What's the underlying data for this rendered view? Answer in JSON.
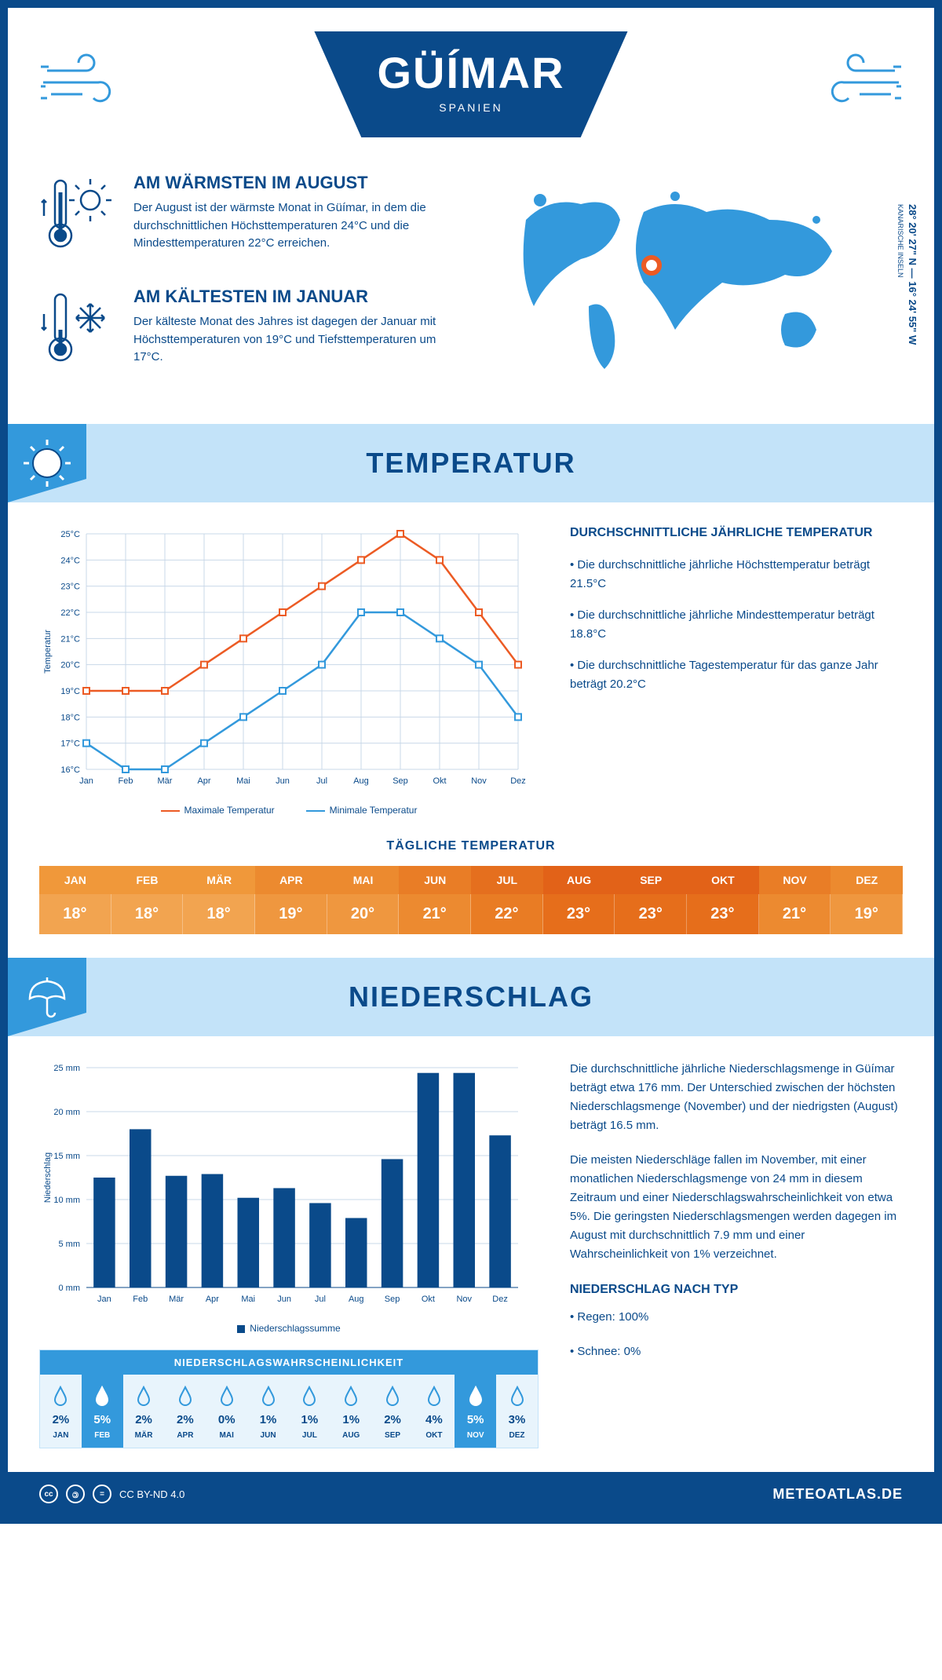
{
  "header": {
    "city": "GÜÍMAR",
    "country": "SPANIEN",
    "coords": "28° 20' 27\" N — 16° 24' 55\" W",
    "coords_sub": "KANARISCHE INSELN"
  },
  "facts": {
    "warm": {
      "title": "AM WÄRMSTEN IM AUGUST",
      "text": "Der August ist der wärmste Monat in Güímar, in dem die durchschnittlichen Höchsttemperaturen 24°C und die Mindesttemperaturen 22°C erreichen."
    },
    "cold": {
      "title": "AM KÄLTESTEN IM JANUAR",
      "text": "Der kälteste Monat des Jahres ist dagegen der Januar mit Höchsttemperaturen von 19°C und Tiefsttemperaturen um 17°C."
    }
  },
  "sections": {
    "temp_title": "TEMPERATUR",
    "precip_title": "NIEDERSCHLAG"
  },
  "temp_chart": {
    "type": "line",
    "months": [
      "Jan",
      "Feb",
      "Mär",
      "Apr",
      "Mai",
      "Jun",
      "Jul",
      "Aug",
      "Sep",
      "Okt",
      "Nov",
      "Dez"
    ],
    "max_series": [
      19,
      19,
      19,
      20,
      21,
      22,
      23,
      24,
      25,
      24,
      22,
      20
    ],
    "min_series": [
      17,
      16,
      16,
      17,
      18,
      19,
      20,
      22,
      22,
      21,
      20,
      18
    ],
    "ylim": [
      16,
      25
    ],
    "ytick_step": 1,
    "ylabel": "Temperatur",
    "max_color": "#ec5b24",
    "min_color": "#3399dc",
    "grid_color": "#c9d8e8",
    "legend_max": "Maximale Temperatur",
    "legend_min": "Minimale Temperatur"
  },
  "temp_info": {
    "heading": "DURCHSCHNITTLICHE JÄHRLICHE TEMPERATUR",
    "b1": "• Die durchschnittliche jährliche Höchsttemperatur beträgt 21.5°C",
    "b2": "• Die durchschnittliche jährliche Mindesttemperatur beträgt 18.8°C",
    "b3": "• Die durchschnittliche Tagestemperatur für das ganze Jahr beträgt 20.2°C"
  },
  "daily_temp": {
    "title": "TÄGLICHE TEMPERATUR",
    "months": [
      "JAN",
      "FEB",
      "MÄR",
      "APR",
      "MAI",
      "JUN",
      "JUL",
      "AUG",
      "SEP",
      "OKT",
      "NOV",
      "DEZ"
    ],
    "values": [
      "18°",
      "18°",
      "18°",
      "19°",
      "20°",
      "21°",
      "22°",
      "23°",
      "23°",
      "23°",
      "21°",
      "19°"
    ],
    "head_colors": [
      "#f0983a",
      "#f0983a",
      "#f0983a",
      "#ec8a2f",
      "#ec8a2f",
      "#e97d26",
      "#e56f1e",
      "#e26218",
      "#e26218",
      "#e26218",
      "#e97d26",
      "#ec8a2f"
    ],
    "val_colors": [
      "#f2a450",
      "#f2a450",
      "#f2a450",
      "#ef973f",
      "#ef973f",
      "#ec8a30",
      "#e97c24",
      "#e66e1b",
      "#e66e1b",
      "#e66e1b",
      "#ec8a30",
      "#ef973f"
    ]
  },
  "precip_chart": {
    "type": "bar",
    "months": [
      "Jan",
      "Feb",
      "Mär",
      "Apr",
      "Mai",
      "Jun",
      "Jul",
      "Aug",
      "Sep",
      "Okt",
      "Nov",
      "Dez"
    ],
    "values": [
      12.5,
      18,
      12.7,
      12.9,
      10.2,
      11.3,
      9.6,
      7.9,
      14.6,
      24.4,
      24.4,
      17.3
    ],
    "ylim": [
      0,
      25
    ],
    "ytick_step": 5,
    "ylabel": "Niederschlag",
    "bar_color": "#0a4a8a",
    "grid_color": "#c9d8e8",
    "legend": "Niederschlagssumme"
  },
  "precip_text": {
    "p1": "Die durchschnittliche jährliche Niederschlagsmenge in Güímar beträgt etwa 176 mm. Der Unterschied zwischen der höchsten Niederschlagsmenge (November) und der niedrigsten (August) beträgt 16.5 mm.",
    "p2": "Die meisten Niederschläge fallen im November, mit einer monatlichen Niederschlagsmenge von 24 mm in diesem Zeitraum und einer Niederschlagswahrscheinlichkeit von etwa 5%. Die geringsten Niederschlagsmengen werden dagegen im August mit durchschnittlich 7.9 mm und einer Wahrscheinlichkeit von 1% verzeichnet.",
    "h4": "NIEDERSCHLAG NACH TYP",
    "b1": "• Regen: 100%",
    "b2": "• Schnee: 0%"
  },
  "prob": {
    "title": "NIEDERSCHLAGSWAHRSCHEINLICHKEIT",
    "months": [
      "JAN",
      "FEB",
      "MÄR",
      "APR",
      "MAI",
      "JUN",
      "JUL",
      "AUG",
      "SEP",
      "OKT",
      "NOV",
      "DEZ"
    ],
    "values": [
      "2%",
      "5%",
      "2%",
      "2%",
      "0%",
      "1%",
      "1%",
      "1%",
      "2%",
      "4%",
      "5%",
      "3%"
    ],
    "highlight": [
      false,
      true,
      false,
      false,
      false,
      false,
      false,
      false,
      false,
      false,
      true,
      false
    ]
  },
  "footer": {
    "license": "CC BY-ND 4.0",
    "site": "METEOATLAS.DE"
  },
  "colors": {
    "primary": "#0a4a8a",
    "accent": "#3399dc",
    "light": "#c3e3f9"
  }
}
